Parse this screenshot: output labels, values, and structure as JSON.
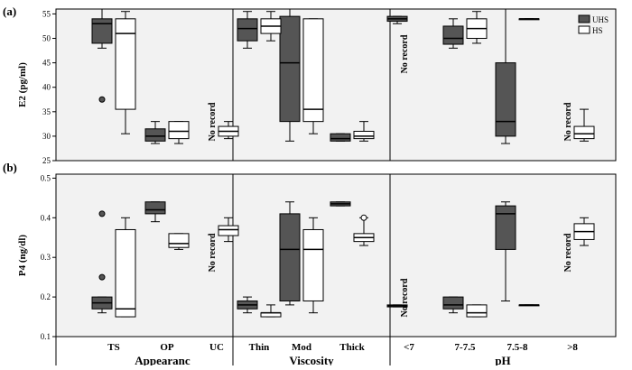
{
  "colors": {
    "uhs": "#555555",
    "hs": "#ffffff",
    "plot_bg": "#f2f2f2",
    "frame": "#000000"
  },
  "chart_data": [
    {
      "type": "boxplot",
      "panel_label": "(a)",
      "ylabel": "E2 (pg/ml)",
      "ylim": [
        25,
        56
      ],
      "yticks": [
        "25",
        "30",
        "35",
        "40",
        "45",
        "50",
        "55"
      ],
      "legend": {
        "position": "top-right",
        "entries": [
          {
            "name": "UHS",
            "color": "#555555"
          },
          {
            "name": "HS",
            "color": "#ffffff"
          }
        ]
      },
      "groups": [
        "Appearanc",
        "Viscosity",
        "pH"
      ],
      "categories": [
        "TS",
        "OP",
        "UC",
        "Thin",
        "Mod",
        "Thick",
        "<7",
        "7-7.5",
        "7.5-8",
        ">8"
      ],
      "series": [
        {
          "name": "UHS",
          "boxes": [
            {
              "category": "TS",
              "min": 48,
              "q1": 49,
              "median": 53,
              "q3": 54,
              "max": 56,
              "outliers": [
                37.5
              ]
            },
            {
              "category": "OP",
              "min": 28.5,
              "q1": 29,
              "median": 30,
              "q3": 31.5,
              "max": 33
            },
            {
              "category": "UC",
              "no_record": true
            },
            {
              "category": "Thin",
              "min": 48,
              "q1": 49.5,
              "median": 52,
              "q3": 54,
              "max": 55.5
            },
            {
              "category": "Mod",
              "min": 29,
              "q1": 33,
              "median": 45,
              "q3": 54.5,
              "max": 56
            },
            {
              "category": "Thick",
              "min": 29,
              "q1": 29,
              "median": 29.5,
              "q3": 30.5,
              "max": 30.5
            },
            {
              "category": "<7",
              "min": 53,
              "q1": 53.5,
              "median": 54,
              "q3": 54.5,
              "max": 54.5
            },
            {
              "category": "7-7.5",
              "min": 48,
              "q1": 48.8,
              "median": 50,
              "q3": 52.5,
              "max": 54
            },
            {
              "category": "7.5-8",
              "min": 28.5,
              "q1": 30,
              "median": 33,
              "q3": 45,
              "max": 56
            },
            {
              "category": ">8",
              "no_record": true
            }
          ]
        },
        {
          "name": "HS",
          "boxes": [
            {
              "category": "TS",
              "min": 30.5,
              "q1": 35.5,
              "median": 51,
              "q3": 54,
              "max": 55.5
            },
            {
              "category": "OP",
              "min": 28.5,
              "q1": 29.5,
              "median": 31,
              "q3": 33,
              "max": 33
            },
            {
              "category": "UC",
              "min": 29.5,
              "q1": 30,
              "median": 31,
              "q3": 32,
              "max": 33
            },
            {
              "category": "Thin",
              "min": 49.5,
              "q1": 51,
              "median": 52.5,
              "q3": 54,
              "max": 55.5
            },
            {
              "category": "Mod",
              "min": 30.5,
              "q1": 33,
              "median": 35.5,
              "q3": 54,
              "max": 54
            },
            {
              "category": "Thick",
              "min": 29,
              "q1": 29.5,
              "median": 30,
              "q3": 31,
              "max": 33
            },
            {
              "category": "<7",
              "no_record": true
            },
            {
              "category": "7-7.5",
              "min": 49,
              "q1": 50,
              "median": 52,
              "q3": 54,
              "max": 55.5
            },
            {
              "category": "7.5-8",
              "min": 54,
              "q1": 54,
              "median": 54,
              "q3": 54,
              "max": 54
            },
            {
              "category": ">8",
              "min": 29,
              "q1": 29.5,
              "median": 30.5,
              "q3": 32,
              "max": 35.5
            }
          ]
        }
      ],
      "annotations": [
        {
          "text": "No record",
          "category": "UC"
        },
        {
          "text": "No record",
          "category": "<7"
        },
        {
          "text": "No record",
          "category": ">8"
        }
      ]
    },
    {
      "type": "boxplot",
      "panel_label": "(b)",
      "ylabel": "P4 (ng/dl)",
      "ylim": [
        0.1,
        0.5
      ],
      "yticks": [
        "0.1",
        "0.2",
        "0.3",
        "0.4",
        "0.5"
      ],
      "groups": [
        "Appearanc",
        "Viscosity",
        "pH"
      ],
      "categories": [
        "TS",
        "OP",
        "UC",
        "Thin",
        "Mod",
        "Thick",
        "<7",
        "7-7.5",
        "7.5-8",
        ">8"
      ],
      "series": [
        {
          "name": "UHS",
          "boxes": [
            {
              "category": "TS",
              "min": 0.16,
              "q1": 0.17,
              "median": 0.185,
              "q3": 0.2,
              "max": 0.2,
              "outliers": [
                0.25,
                0.41
              ]
            },
            {
              "category": "OP",
              "min": 0.39,
              "q1": 0.41,
              "median": 0.42,
              "q3": 0.44,
              "max": 0.44
            },
            {
              "category": "UC",
              "no_record": true
            },
            {
              "category": "Thin",
              "min": 0.16,
              "q1": 0.17,
              "median": 0.18,
              "q3": 0.19,
              "max": 0.2
            },
            {
              "category": "Mod",
              "min": 0.18,
              "q1": 0.19,
              "median": 0.32,
              "q3": 0.41,
              "max": 0.44
            },
            {
              "category": "Thick",
              "min": 0.43,
              "q1": 0.43,
              "median": 0.435,
              "q3": 0.44,
              "max": 0.44
            },
            {
              "category": "<7",
              "min": 0.175,
              "q1": 0.175,
              "median": 0.178,
              "q3": 0.18,
              "max": 0.18
            },
            {
              "category": "7-7.5",
              "min": 0.16,
              "q1": 0.17,
              "median": 0.18,
              "q3": 0.2,
              "max": 0.2
            },
            {
              "category": "7.5-8",
              "min": 0.19,
              "q1": 0.32,
              "median": 0.41,
              "q3": 0.43,
              "max": 0.44
            },
            {
              "category": ">8",
              "no_record": true
            }
          ]
        },
        {
          "name": "HS",
          "boxes": [
            {
              "category": "TS",
              "min": 0.15,
              "q1": 0.15,
              "median": 0.17,
              "q3": 0.37,
              "max": 0.4
            },
            {
              "category": "OP",
              "min": 0.32,
              "q1": 0.325,
              "median": 0.335,
              "q3": 0.36,
              "max": 0.36
            },
            {
              "category": "UC",
              "min": 0.34,
              "q1": 0.355,
              "median": 0.37,
              "q3": 0.38,
              "max": 0.4
            },
            {
              "category": "Thin",
              "min": 0.15,
              "q1": 0.15,
              "median": 0.16,
              "q3": 0.16,
              "max": 0.18
            },
            {
              "category": "Mod",
              "min": 0.16,
              "q1": 0.19,
              "median": 0.32,
              "q3": 0.37,
              "max": 0.4
            },
            {
              "category": "Thick",
              "min": 0.33,
              "q1": 0.34,
              "median": 0.35,
              "q3": 0.36,
              "max": 0.4,
              "outliers": [
                0.4
              ]
            },
            {
              "category": "<7",
              "no_record": true
            },
            {
              "category": "7-7.5",
              "min": 0.15,
              "q1": 0.15,
              "median": 0.16,
              "q3": 0.18,
              "max": 0.18
            },
            {
              "category": "7.5-8",
              "min": 0.18,
              "q1": 0.18,
              "median": 0.18,
              "q3": 0.18,
              "max": 0.18
            },
            {
              "category": ">8",
              "min": 0.33,
              "q1": 0.345,
              "median": 0.365,
              "q3": 0.385,
              "max": 0.4
            }
          ]
        }
      ],
      "annotations": [
        {
          "text": "No record",
          "category": "UC"
        },
        {
          "text": "No record",
          "category": "<7"
        },
        {
          "text": "No record",
          "category": ">8"
        }
      ]
    }
  ],
  "x_axis": {
    "tick_labels": [
      "TS",
      "OP",
      "UC",
      "Thin",
      "Mod",
      "Thick",
      "<7",
      "7-7.5",
      "7.5-8",
      ">8"
    ],
    "group_titles": [
      "Appearanc",
      "Viscosity",
      "pH"
    ]
  }
}
